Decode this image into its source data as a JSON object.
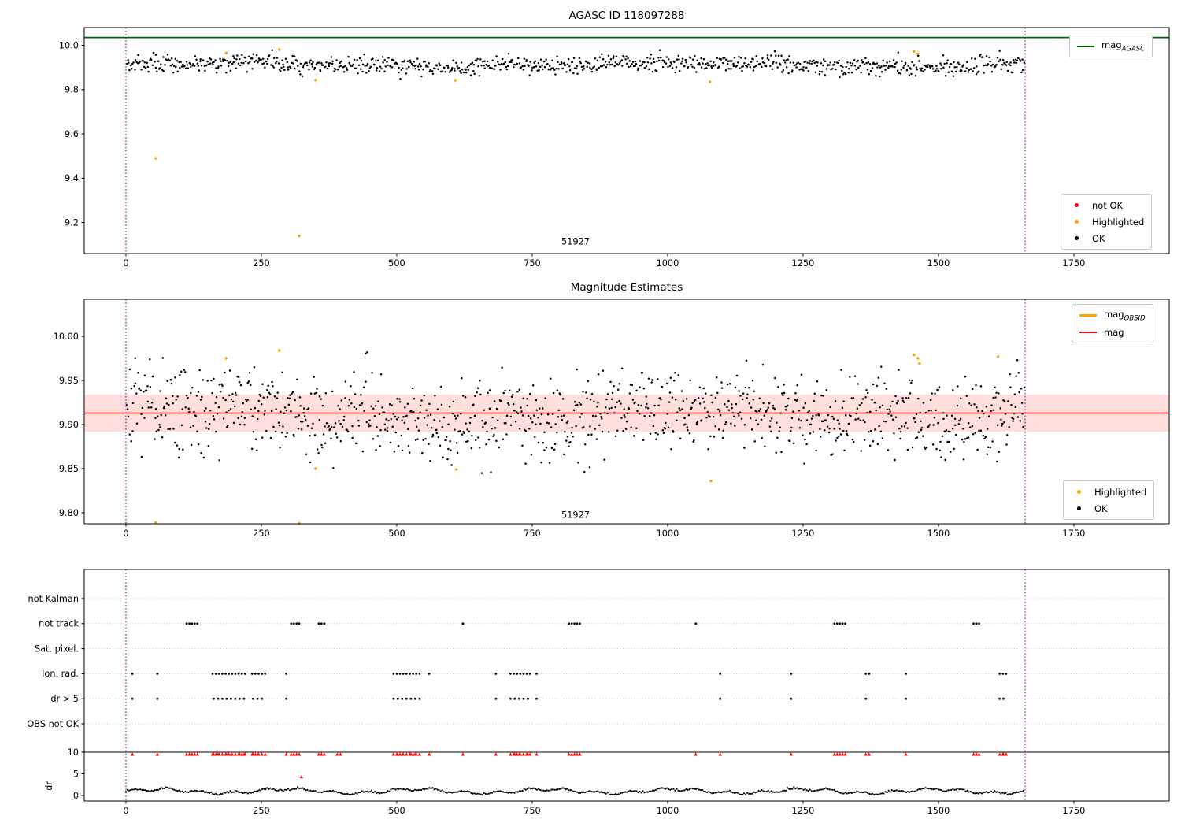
{
  "figure": {
    "colors": {
      "ok": "#000000",
      "highlighted": "#ffa500",
      "not_ok": "#ff0000",
      "mag_agasc": "#006400",
      "mag": "#ff0000",
      "band": "rgba(255,0,0,0.13)",
      "vline": "#a000a0",
      "grid": "#b8b8b8"
    }
  },
  "chart_data": [
    {
      "id": "panel1",
      "type": "scatter",
      "title": "AGASC ID 118097288",
      "xlim": [
        -77,
        1926
      ],
      "ylim": [
        9.06,
        10.08
      ],
      "xticks": [
        0,
        250,
        500,
        750,
        1000,
        1250,
        1500,
        1750
      ],
      "yticks": [
        {
          "v": 9.2,
          "label": "9.2"
        },
        {
          "v": 9.4,
          "label": "9.4"
        },
        {
          "v": 9.6,
          "label": "9.6"
        },
        {
          "v": 9.8,
          "label": "9.8"
        },
        {
          "v": 10.0,
          "label": "10.0"
        }
      ],
      "hline": {
        "y": 10.035,
        "color": "mag_agasc",
        "width": 1.8
      },
      "vlines": [
        0,
        1660
      ],
      "annotation": {
        "text": "51927",
        "x": 830,
        "y": 9.1
      },
      "ok_series": {
        "n": 950,
        "x0": 2,
        "x1": 1660,
        "mean": 9.912,
        "std": 0.02,
        "clip": [
          9.848,
          9.978
        ],
        "seed": 42
      },
      "highlighted_points": [
        [
          55,
          9.49
        ],
        [
          185,
          9.965
        ],
        [
          283,
          9.98
        ],
        [
          320,
          9.14
        ],
        [
          350,
          9.843
        ],
        [
          608,
          9.842
        ],
        [
          1078,
          9.835
        ],
        [
          1455,
          9.972
        ],
        [
          1462,
          9.962
        ]
      ],
      "legend_top": [
        {
          "type": "line",
          "color": "mag_agasc",
          "base": "mag",
          "sub": "AGASC"
        }
      ],
      "legend_bottom": [
        {
          "type": "dot",
          "color": "not_ok",
          "label": "not OK"
        },
        {
          "type": "dot",
          "color": "highlighted",
          "label": "Highlighted"
        },
        {
          "type": "dot",
          "color": "ok",
          "label": "OK"
        }
      ]
    },
    {
      "id": "panel2",
      "type": "scatter",
      "title": "Magnitude Estimates",
      "xlim": [
        -77,
        1926
      ],
      "ylim": [
        9.7875,
        10.042
      ],
      "xticks": [
        0,
        250,
        500,
        750,
        1000,
        1250,
        1500,
        1750
      ],
      "yticks": [
        {
          "v": 9.8,
          "label": "9.80"
        },
        {
          "v": 9.85,
          "label": "9.85"
        },
        {
          "v": 9.9,
          "label": "9.90"
        },
        {
          "v": 9.95,
          "label": "9.95"
        },
        {
          "v": 10.0,
          "label": "10.00"
        }
      ],
      "hline": {
        "y": 9.913,
        "color": "mag",
        "width": 1.5
      },
      "band": {
        "y0": 9.892,
        "y1": 9.934
      },
      "vlines": [
        0,
        1660
      ],
      "annotation": {
        "text": "51927",
        "x": 830,
        "y": 9.794
      },
      "ok_series": {
        "n": 1150,
        "x0": 2,
        "x1": 1660,
        "mean": 9.912,
        "std": 0.023,
        "clip": [
          9.845,
          9.982
        ],
        "seed": 7
      },
      "highlighted_points": [
        [
          55,
          9.789
        ],
        [
          185,
          9.975
        ],
        [
          283,
          9.984
        ],
        [
          320,
          9.788
        ],
        [
          350,
          9.85
        ],
        [
          610,
          9.849
        ],
        [
          1080,
          9.836
        ],
        [
          1455,
          9.979
        ],
        [
          1462,
          9.975
        ],
        [
          1465,
          9.969
        ],
        [
          1610,
          9.977
        ]
      ],
      "legend_top": [
        {
          "type": "line",
          "color": "highlighted",
          "base": "mag",
          "sub": "OBSID",
          "lw": 3
        },
        {
          "type": "line",
          "color": "mag",
          "base": "mag",
          "sub": ""
        }
      ],
      "legend_bottom": [
        {
          "type": "dot",
          "color": "highlighted",
          "label": "Highlighted"
        },
        {
          "type": "dot",
          "color": "ok",
          "label": "OK"
        }
      ]
    },
    {
      "id": "panel3",
      "type": "flags",
      "xlim": [
        -77,
        1926
      ],
      "xticks": [
        0,
        250,
        500,
        750,
        1000,
        1250,
        1500,
        1750
      ],
      "categories": [
        "not Kalman",
        "not track",
        "Sat. pixel.",
        "Ion. rad.",
        "dr > 5",
        "OBS not OK"
      ],
      "dr_ticks": [
        {
          "v": 0,
          "label": "0"
        },
        {
          "v": 5,
          "label": "5"
        },
        {
          "v": 10,
          "label": "10"
        }
      ],
      "dr_label": "dr",
      "hline_dr": 10,
      "vlines": [
        0,
        1660
      ],
      "flag_points": {
        "not track": [
          112,
          117,
          122,
          127,
          132,
          305,
          310,
          315,
          320,
          356,
          361,
          366,
          622,
          818,
          823,
          828,
          833,
          838,
          1052,
          1308,
          1313,
          1318,
          1323,
          1328,
          1565,
          1570,
          1575
        ],
        "Ion. rad.": [
          12,
          58,
          160,
          166,
          172,
          178,
          184,
          190,
          196,
          202,
          208,
          214,
          220,
          233,
          239,
          245,
          251,
          257,
          296,
          494,
          500,
          506,
          512,
          518,
          524,
          530,
          536,
          542,
          560,
          683,
          710,
          716,
          722,
          728,
          734,
          740,
          746,
          758,
          1097,
          1228,
          1366,
          1372,
          1440,
          1613,
          1619,
          1625
        ],
        "dr > 5": [
          12,
          58,
          162,
          170,
          178,
          186,
          194,
          202,
          210,
          218,
          235,
          243,
          251,
          296,
          494,
          502,
          510,
          518,
          526,
          534,
          542,
          683,
          710,
          718,
          726,
          734,
          742,
          758,
          1097,
          1228,
          1366,
          1440,
          1613,
          1620
        ]
      },
      "red_row_dr": 9.5,
      "red_extra": [
        390,
        396
      ],
      "red_single": [
        324,
        4.3
      ],
      "dr_series": {
        "n": 560,
        "x0": 0,
        "x1": 1660,
        "seed": 99
      }
    }
  ]
}
